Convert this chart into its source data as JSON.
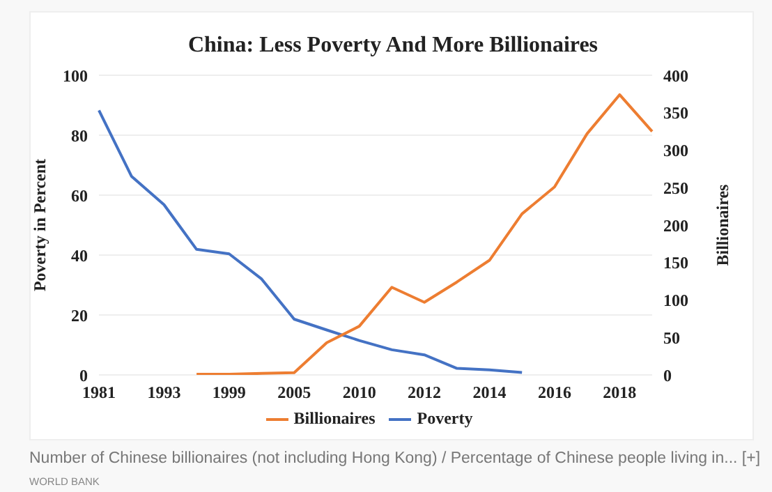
{
  "chart_data": {
    "type": "line",
    "title": "China: Less Poverty And More Billionaires",
    "categories": [
      "1981",
      null,
      "1993",
      null,
      "1999",
      null,
      "2005",
      null,
      "2010",
      null,
      "2012",
      null,
      "2014",
      null,
      "2016",
      null,
      "2018",
      null
    ],
    "series": [
      {
        "name": "Poverty",
        "color": "#4472c4",
        "values": [
          88.3,
          66.3,
          56.8,
          41.9,
          40.4,
          32.0,
          18.6,
          15.0,
          11.5,
          8.4,
          6.7,
          2.2,
          1.7,
          0.8,
          null,
          null,
          null,
          null
        ]
      },
      {
        "name": "Billionaires",
        "color": "#ed7d31",
        "axis": "y2",
        "values": [
          null,
          null,
          null,
          1,
          1,
          2,
          3,
          43,
          65,
          117,
          97,
          124,
          153,
          215,
          251,
          322,
          374,
          325
        ]
      }
    ],
    "ylabel": "Poverty in Percent",
    "y2label": "Billionaires",
    "ylim": [
      0,
      100
    ],
    "yticks": [
      0,
      20,
      40,
      60,
      80,
      100
    ],
    "y2lim": [
      0,
      400
    ],
    "y2ticks": [
      0,
      50,
      100,
      150,
      200,
      250,
      300,
      350,
      400
    ],
    "grid": "y",
    "legend": "bottom",
    "marker": "none",
    "line_style": "solid",
    "annotations": [
      "Number of Chinese billionaires (not including Hong Kong) / Percentage of Chinese people living in... [+]",
      "WORLD BANK"
    ]
  }
}
